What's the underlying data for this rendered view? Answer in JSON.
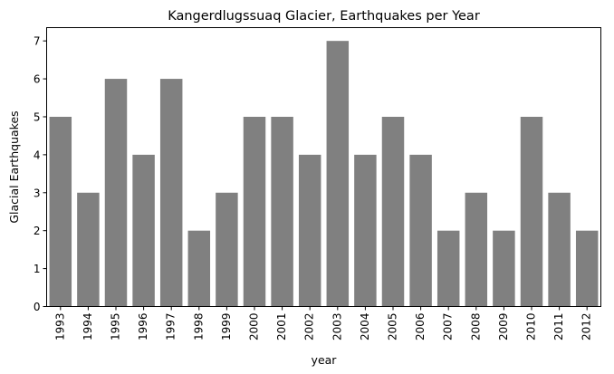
{
  "chart_data": {
    "type": "bar",
    "title": "Kangerdlugssuaq Glacier, Earthquakes per Year",
    "xlabel": "year",
    "ylabel": "Glacial Earthquakes",
    "categories": [
      "1993",
      "1994",
      "1995",
      "1996",
      "1997",
      "1998",
      "1999",
      "2000",
      "2001",
      "2002",
      "2003",
      "2004",
      "2005",
      "2006",
      "2007",
      "2008",
      "2009",
      "2010",
      "2011",
      "2012"
    ],
    "values": [
      5,
      3,
      6,
      4,
      6,
      2,
      3,
      5,
      5,
      4,
      7,
      4,
      5,
      4,
      2,
      3,
      2,
      5,
      3,
      2
    ],
    "ylim": [
      0,
      7.35
    ],
    "yticks": [
      0,
      1,
      2,
      3,
      4,
      5,
      6,
      7
    ],
    "bar_color": "#808080",
    "grid": false,
    "legend": "none"
  }
}
